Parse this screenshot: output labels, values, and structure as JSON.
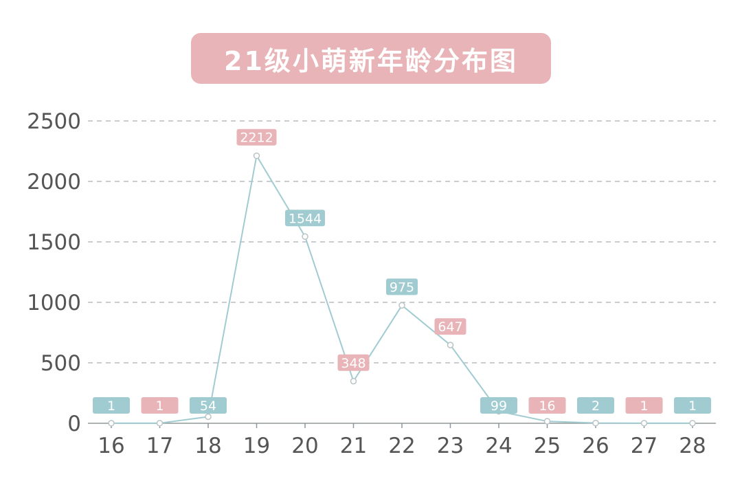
{
  "chart_data": {
    "type": "line",
    "title": "21级小萌新年龄分布图",
    "xlabel": "",
    "ylabel": "",
    "categories": [
      "16",
      "17",
      "18",
      "19",
      "20",
      "21",
      "22",
      "23",
      "24",
      "25",
      "26",
      "27",
      "28"
    ],
    "values": [
      1,
      1,
      54,
      2212,
      1544,
      348,
      975,
      647,
      99,
      16,
      2,
      1,
      1
    ],
    "label_colors": [
      "#a0cbd0",
      "#e8b4b8",
      "#a0cbd0",
      "#e8b4b8",
      "#a0cbd0",
      "#e8b4b8",
      "#a0cbd0",
      "#e8b4b8",
      "#a0cbd0",
      "#e8b4b8",
      "#a0cbd0",
      "#e8b4b8",
      "#a0cbd0"
    ],
    "ylim": [
      0,
      2500
    ],
    "yticks": [
      0,
      500,
      1000,
      1500,
      2000,
      2500
    ],
    "grid": true,
    "line_color": "#a0cbd0",
    "title_bg_color": "#e8b4b8"
  }
}
